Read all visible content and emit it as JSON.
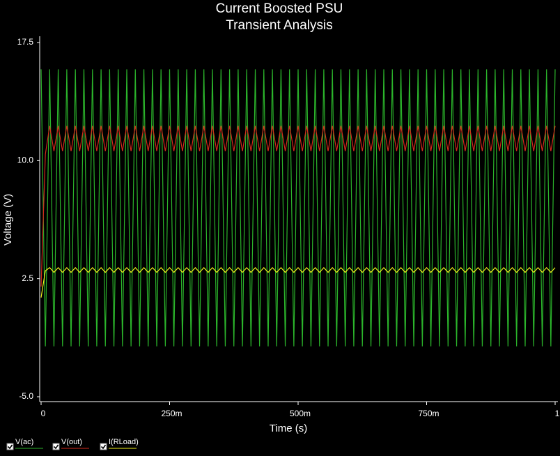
{
  "chart_data": {
    "type": "line",
    "title": "Current Boosted PSU",
    "subtitle": "Transient Analysis",
    "x_label": "Time (s)",
    "y_label": "Voltage (V)",
    "xlim": [
      0,
      1
    ],
    "ylim": [
      -5,
      17.5
    ],
    "xticks": [
      0,
      {
        "value": 0.25,
        "label": "250m"
      },
      {
        "value": 0.5,
        "label": "500m"
      },
      {
        "value": 0.75,
        "label": "750m"
      },
      1
    ],
    "yticks": [
      {
        "value": -5,
        "label": "-5.0"
      },
      2.5,
      {
        "value": 10,
        "label": "10.0"
      },
      17.5
    ],
    "grid": false,
    "legend": "bottom",
    "x": [
      0,
      0.0083,
      0.0167,
      0.025,
      0.0333,
      0.0417,
      0.05,
      0.0583,
      0.0667,
      0.075,
      0.0833,
      0.0917,
      0.1,
      0.1083,
      0.1167,
      0.125,
      0.1333,
      0.1417,
      0.15,
      0.1583,
      0.1667,
      0.175,
      0.1833,
      0.1917,
      0.2,
      0.2083,
      0.2167,
      0.225,
      0.2333,
      0.2417,
      0.25,
      0.2583,
      0.2667,
      0.275,
      0.2833,
      0.2917,
      0.3,
      0.3083,
      0.3167,
      0.325,
      0.3333,
      0.3417,
      0.35,
      0.3583,
      0.3667,
      0.375,
      0.3833,
      0.3917,
      0.4,
      0.4083,
      0.4167,
      0.425,
      0.4333,
      0.4417,
      0.45,
      0.4583,
      0.4667,
      0.475,
      0.4833,
      0.4917,
      0.5,
      0.5083,
      0.5167,
      0.525,
      0.5333,
      0.5417,
      0.55,
      0.5583,
      0.5667,
      0.575,
      0.5833,
      0.5917,
      0.6,
      0.6083,
      0.6167,
      0.625,
      0.6333,
      0.6417,
      0.65,
      0.6583,
      0.6667,
      0.675,
      0.6833,
      0.6917,
      0.7,
      0.7083,
      0.7167,
      0.725,
      0.7333,
      0.7417,
      0.75,
      0.7583,
      0.7667,
      0.775,
      0.7833,
      0.7917,
      0.8,
      0.8083,
      0.8167,
      0.825,
      0.8333,
      0.8417,
      0.85,
      0.8583,
      0.8667,
      0.875,
      0.8833,
      0.8917,
      0.9,
      0.9083,
      0.9167,
      0.925,
      0.9333,
      0.9417,
      0.95,
      0.9583,
      0.9667,
      0.975,
      0.9833,
      0.9917,
      1
    ],
    "series": [
      {
        "name": "V(ac)",
        "color": "#2bb52b",
        "values": [
          15.8,
          -1.8,
          15.8,
          -1.8,
          15.8,
          -1.8,
          15.8,
          -1.8,
          15.8,
          -1.8,
          15.8,
          -1.8,
          15.8,
          -1.8,
          15.8,
          -1.8,
          15.8,
          -1.8,
          15.8,
          -1.8,
          15.8,
          -1.8,
          15.8,
          -1.8,
          15.8,
          -1.8,
          15.8,
          -1.8,
          15.8,
          -1.8,
          15.8,
          -1.8,
          15.8,
          -1.8,
          15.8,
          -1.8,
          15.8,
          -1.8,
          15.8,
          -1.8,
          15.8,
          -1.8,
          15.8,
          -1.8,
          15.8,
          -1.8,
          15.8,
          -1.8,
          15.8,
          -1.8,
          15.8,
          -1.8,
          15.8,
          -1.8,
          15.8,
          -1.8,
          15.8,
          -1.8,
          15.8,
          -1.8,
          15.8,
          -1.8,
          15.8,
          -1.8,
          15.8,
          -1.8,
          15.8,
          -1.8,
          15.8,
          -1.8,
          15.8,
          -1.8,
          15.8,
          -1.8,
          15.8,
          -1.8,
          15.8,
          -1.8,
          15.8,
          -1.8,
          15.8,
          -1.8,
          15.8,
          -1.8,
          15.8,
          -1.8,
          15.8,
          -1.8,
          15.8,
          -1.8,
          15.8,
          -1.8,
          15.8,
          -1.8,
          15.8,
          -1.8,
          15.8,
          -1.8,
          15.8,
          -1.8,
          15.8,
          -1.8,
          15.8,
          -1.8,
          15.8,
          -1.8,
          15.8,
          -1.8,
          15.8,
          -1.8,
          15.8,
          -1.8,
          15.8,
          -1.8,
          15.8,
          -1.8,
          15.8,
          -1.8,
          15.8,
          -1.8,
          15.8
        ]
      },
      {
        "name": "V(out)",
        "color": "#d42a1c",
        "values": [
          2,
          10.4,
          12.2,
          10.6,
          12.2,
          10.6,
          12.2,
          10.6,
          12.2,
          10.6,
          12.2,
          10.6,
          12.2,
          10.6,
          12.2,
          10.6,
          12.2,
          10.6,
          12.2,
          10.6,
          12.2,
          10.6,
          12.2,
          10.6,
          12.2,
          10.6,
          12.2,
          10.6,
          12.2,
          10.6,
          12.2,
          10.6,
          12.2,
          10.6,
          12.2,
          10.6,
          12.2,
          10.6,
          12.2,
          10.6,
          12.2,
          10.6,
          12.2,
          10.6,
          12.2,
          10.6,
          12.2,
          10.6,
          12.2,
          10.6,
          12.2,
          10.6,
          12.2,
          10.6,
          12.2,
          10.6,
          12.2,
          10.6,
          12.2,
          10.6,
          12.2,
          10.6,
          12.2,
          10.6,
          12.2,
          10.6,
          12.2,
          10.6,
          12.2,
          10.6,
          12.2,
          10.6,
          12.2,
          10.6,
          12.2,
          10.6,
          12.2,
          10.6,
          12.2,
          10.6,
          12.2,
          10.6,
          12.2,
          10.6,
          12.2,
          10.6,
          12.2,
          10.6,
          12.2,
          10.6,
          12.2,
          10.6,
          12.2,
          10.6,
          12.2,
          10.6,
          12.2,
          10.6,
          12.2,
          10.6,
          12.2,
          10.6,
          12.2,
          10.6,
          12.2,
          10.6,
          12.2,
          10.6,
          12.2,
          10.6,
          12.2,
          10.6,
          12.2,
          10.6,
          12.2,
          10.6,
          12.2,
          10.6,
          12.2,
          10.6,
          12.2
        ]
      },
      {
        "name": "I(RLoad)",
        "color": "#f2f21c",
        "values": [
          1.3,
          3,
          3.2,
          2.9,
          3.2,
          2.9,
          3.2,
          2.9,
          3.2,
          2.9,
          3.2,
          2.9,
          3.2,
          2.9,
          3.2,
          2.9,
          3.2,
          2.9,
          3.2,
          2.9,
          3.2,
          2.9,
          3.2,
          2.9,
          3.2,
          2.9,
          3.2,
          2.9,
          3.2,
          2.9,
          3.2,
          2.9,
          3.2,
          2.9,
          3.2,
          2.9,
          3.2,
          2.9,
          3.2,
          2.9,
          3.2,
          2.9,
          3.2,
          2.9,
          3.2,
          2.9,
          3.2,
          2.9,
          3.2,
          2.9,
          3.2,
          2.9,
          3.2,
          2.9,
          3.2,
          2.9,
          3.2,
          2.9,
          3.2,
          2.9,
          3.2,
          2.9,
          3.2,
          2.9,
          3.2,
          2.9,
          3.2,
          2.9,
          3.2,
          2.9,
          3.2,
          2.9,
          3.2,
          2.9,
          3.2,
          2.9,
          3.2,
          2.9,
          3.2,
          2.9,
          3.2,
          2.9,
          3.2,
          2.9,
          3.2,
          2.9,
          3.2,
          2.9,
          3.2,
          2.9,
          3.2,
          2.9,
          3.2,
          2.9,
          3.2,
          2.9,
          3.2,
          2.9,
          3.2,
          2.9,
          3.2,
          2.9,
          3.2,
          2.9,
          3.2,
          2.9,
          3.2,
          2.9,
          3.2,
          2.9,
          3.2,
          2.9,
          3.2,
          2.9,
          3.2,
          2.9,
          3.2,
          2.9,
          3.2,
          2.9,
          3.2
        ]
      }
    ]
  }
}
